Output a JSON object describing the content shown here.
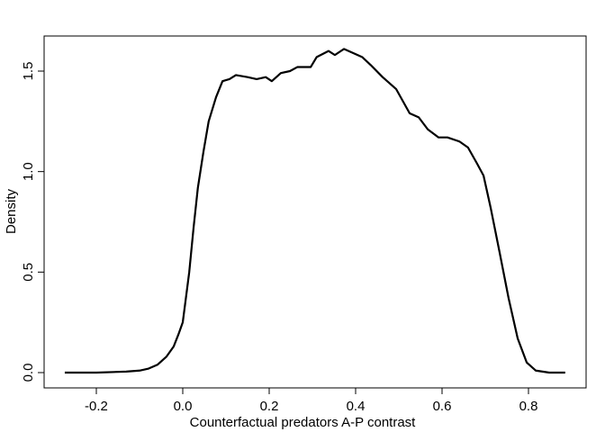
{
  "chart_data": {
    "type": "line",
    "xlabel": "Counterfactual predators A-P contrast",
    "ylabel": "Density",
    "x": [
      -0.273,
      -0.2,
      -0.131,
      -0.1,
      -0.079,
      -0.058,
      -0.0375,
      -0.021,
      -0.01,
      0.0,
      0.006,
      0.015,
      0.025,
      0.035,
      0.048,
      0.06,
      0.077,
      0.092,
      0.108,
      0.123,
      0.15,
      0.171,
      0.192,
      0.206,
      0.227,
      0.248,
      0.265,
      0.296,
      0.31,
      0.3375,
      0.352,
      0.373,
      0.394,
      0.415,
      0.435,
      0.4625,
      0.494,
      0.525,
      0.546,
      0.567,
      0.592,
      0.6125,
      0.64,
      0.66,
      0.681,
      0.696,
      0.7125,
      0.733,
      0.754,
      0.775,
      0.796,
      0.817,
      0.848,
      0.885
    ],
    "series": [
      {
        "color": "#000000",
        "values": [
          0.0,
          0.0,
          0.005,
          0.01,
          0.02,
          0.04,
          0.08,
          0.13,
          0.19,
          0.25,
          0.35,
          0.5,
          0.72,
          0.92,
          1.1,
          1.25,
          1.37,
          1.45,
          1.46,
          1.48,
          1.47,
          1.46,
          1.47,
          1.45,
          1.49,
          1.5,
          1.52,
          1.52,
          1.57,
          1.6,
          1.58,
          1.61,
          1.59,
          1.57,
          1.53,
          1.47,
          1.41,
          1.29,
          1.27,
          1.21,
          1.17,
          1.17,
          1.15,
          1.12,
          1.04,
          0.98,
          0.82,
          0.6,
          0.37,
          0.17,
          0.05,
          0.01,
          0.0,
          0.0
        ]
      }
    ],
    "xlim": [
      -0.3208,
      0.9333
    ],
    "ylim": [
      -0.0761,
      1.6746
    ],
    "xticks": [
      -0.2,
      {
        "value": 0,
        "label": "0.0"
      },
      0.2,
      0.4,
      0.6,
      0.8
    ],
    "yticks": [
      {
        "value": 0,
        "label": "0.0"
      },
      0.5,
      {
        "value": 1,
        "label": "1.0"
      },
      1.5
    ]
  }
}
